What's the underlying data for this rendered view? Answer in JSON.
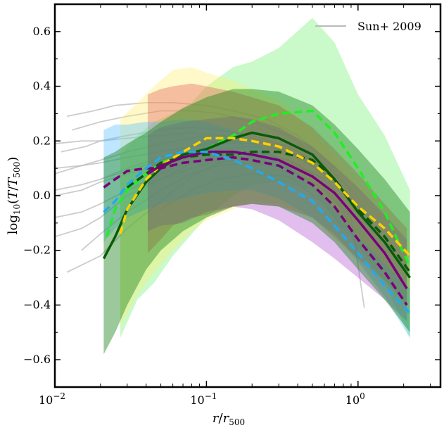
{
  "chart_data": {
    "type": "line",
    "title": "",
    "xlabel": "r/r500",
    "ylabel": "log10(T/T500)",
    "xscale": "log",
    "xlim": [
      0.01,
      3.5
    ],
    "ylim": [
      -0.7,
      0.7
    ],
    "x_ticks": [
      {
        "value": 0.01,
        "base": "10",
        "exp": "−2"
      },
      {
        "value": 0.1,
        "base": "10",
        "exp": "−1"
      },
      {
        "value": 1,
        "base": "10",
        "exp": "0"
      }
    ],
    "y_ticks": [
      {
        "value": -0.6,
        "label": "−0.6"
      },
      {
        "value": -0.4,
        "label": "−0.4"
      },
      {
        "value": -0.2,
        "label": "−0.2"
      },
      {
        "value": 0.0,
        "label": "0.0"
      },
      {
        "value": 0.2,
        "label": "0.2"
      },
      {
        "value": 0.4,
        "label": "0.4"
      },
      {
        "value": 0.6,
        "label": "0.6"
      }
    ],
    "legend": {
      "label": "Sun+ 2009",
      "color": "#bbbbbb",
      "placement": "top-right"
    },
    "bands": [
      {
        "name": "light-green-band",
        "color": "#66ee66",
        "opacity": 0.35,
        "x": [
          0.027,
          0.035,
          0.045,
          0.06,
          0.08,
          0.1,
          0.15,
          0.2,
          0.3,
          0.5,
          0.7,
          1.0,
          1.5,
          2.2
        ],
        "upper": [
          0.15,
          0.22,
          0.27,
          0.3,
          0.34,
          0.4,
          0.47,
          0.49,
          0.54,
          0.65,
          0.56,
          0.37,
          0.22,
          0.02
        ],
        "lower": [
          -0.52,
          -0.38,
          -0.32,
          -0.22,
          -0.14,
          -0.08,
          0.0,
          0.04,
          0.05,
          0.02,
          -0.08,
          -0.18,
          -0.32,
          -0.52
        ]
      },
      {
        "name": "yellow-band",
        "color": "#ffee66",
        "opacity": 0.35,
        "x": [
          0.027,
          0.035,
          0.045,
          0.06,
          0.08,
          0.1,
          0.15,
          0.2,
          0.3,
          0.5,
          0.7,
          1.0,
          1.5,
          2.2
        ],
        "upper": [
          0.28,
          0.34,
          0.4,
          0.46,
          0.47,
          0.45,
          0.42,
          0.39,
          0.35,
          0.24,
          0.14,
          0.03,
          -0.08,
          -0.18
        ],
        "lower": [
          -0.48,
          -0.36,
          -0.28,
          -0.2,
          -0.13,
          -0.09,
          -0.05,
          -0.02,
          -0.03,
          -0.08,
          -0.16,
          -0.24,
          -0.33,
          -0.42
        ]
      },
      {
        "name": "pink-band",
        "color": "#e05050",
        "opacity": 0.35,
        "x": [
          0.041,
          0.05,
          0.06,
          0.08,
          0.1,
          0.15,
          0.2,
          0.3,
          0.5,
          0.7,
          1.0,
          1.5,
          2.1
        ],
        "upper": [
          0.37,
          0.39,
          0.4,
          0.41,
          0.4,
          0.38,
          0.36,
          0.33,
          0.25,
          0.17,
          0.08,
          -0.03,
          -0.12
        ],
        "lower": [
          -0.21,
          -0.16,
          -0.11,
          -0.08,
          -0.07,
          -0.04,
          -0.03,
          -0.04,
          -0.08,
          -0.15,
          -0.23,
          -0.31,
          -0.4
        ]
      },
      {
        "name": "blue-band",
        "color": "#44bbff",
        "opacity": 0.35,
        "x": [
          0.021,
          0.025,
          0.03,
          0.04,
          0.05,
          0.07,
          0.1,
          0.15,
          0.2,
          0.3,
          0.5,
          0.7,
          1.0,
          1.5,
          2.2
        ],
        "upper": [
          0.24,
          0.26,
          0.26,
          0.27,
          0.27,
          0.28,
          0.27,
          0.24,
          0.2,
          0.14,
          0.04,
          -0.05,
          -0.15,
          -0.25,
          -0.34
        ],
        "lower": [
          -0.17,
          -0.12,
          -0.08,
          -0.05,
          -0.03,
          -0.01,
          0.01,
          0.02,
          0.02,
          -0.01,
          -0.08,
          -0.14,
          -0.24,
          -0.37,
          -0.52
        ]
      },
      {
        "name": "purple-band",
        "color": "#aa44cc",
        "opacity": 0.35,
        "x": [
          0.041,
          0.05,
          0.07,
          0.1,
          0.15,
          0.2,
          0.3,
          0.5,
          0.7,
          1.0,
          1.5,
          2.1
        ],
        "upper": [
          0.22,
          0.25,
          0.27,
          0.28,
          0.29,
          0.28,
          0.25,
          0.18,
          0.11,
          0.03,
          -0.07,
          -0.16
        ],
        "lower": [
          -0.13,
          -0.11,
          -0.1,
          -0.06,
          -0.04,
          -0.05,
          -0.09,
          -0.17,
          -0.23,
          -0.3,
          -0.38,
          -0.46
        ]
      },
      {
        "name": "dark-green-band",
        "color": "#228822",
        "opacity": 0.45,
        "x": [
          0.021,
          0.025,
          0.03,
          0.04,
          0.05,
          0.07,
          0.1,
          0.15,
          0.2,
          0.3,
          0.5,
          0.7,
          1.0,
          1.5,
          2.2
        ],
        "upper": [
          0.14,
          0.16,
          0.19,
          0.23,
          0.27,
          0.32,
          0.36,
          0.39,
          0.39,
          0.38,
          0.33,
          0.26,
          0.17,
          0.06,
          -0.06
        ],
        "lower": [
          -0.58,
          -0.5,
          -0.4,
          -0.27,
          -0.2,
          -0.13,
          -0.08,
          -0.04,
          -0.03,
          -0.04,
          -0.1,
          -0.17,
          -0.27,
          -0.38,
          -0.5
        ]
      }
    ],
    "series": [
      {
        "name": "lime-dashed",
        "color": "#22ee22",
        "dashed": true,
        "width": 3.5,
        "x": [
          0.022,
          0.025,
          0.03,
          0.04,
          0.05,
          0.07,
          0.1,
          0.15,
          0.2,
          0.3,
          0.5,
          0.7,
          1.0,
          1.5,
          2.2
        ],
        "y": [
          -0.15,
          -0.05,
          0.02,
          0.08,
          0.12,
          0.15,
          0.17,
          0.22,
          0.27,
          0.3,
          0.31,
          0.23,
          0.1,
          -0.06,
          -0.26
        ]
      },
      {
        "name": "dark-green-solid",
        "color": "#0a5a0a",
        "dashed": false,
        "width": 3.5,
        "x": [
          0.021,
          0.025,
          0.03,
          0.04,
          0.05,
          0.07,
          0.1,
          0.15,
          0.2,
          0.3,
          0.5,
          0.7,
          1.0,
          1.5,
          2.2
        ],
        "y": [
          -0.23,
          -0.15,
          -0.05,
          0.05,
          0.1,
          0.15,
          0.17,
          0.21,
          0.23,
          0.21,
          0.15,
          0.06,
          -0.06,
          -0.17,
          -0.3
        ]
      },
      {
        "name": "dark-green-dashed",
        "color": "#0a5a0a",
        "dashed": true,
        "width": 3.5,
        "x": [
          0.03,
          0.04,
          0.05,
          0.07,
          0.1,
          0.15,
          0.2,
          0.3,
          0.5,
          0.7,
          1.0,
          1.5,
          2.2
        ],
        "y": [
          0.03,
          0.08,
          0.12,
          0.14,
          0.15,
          0.15,
          0.16,
          0.16,
          0.13,
          0.06,
          -0.05,
          -0.15,
          -0.28
        ]
      },
      {
        "name": "yellow-dashed",
        "color": "#ffd000",
        "dashed": true,
        "width": 3.5,
        "x": [
          0.027,
          0.03,
          0.04,
          0.05,
          0.07,
          0.1,
          0.15,
          0.2,
          0.3,
          0.5,
          0.7,
          1.0,
          1.5,
          2.2
        ],
        "y": [
          -0.14,
          -0.05,
          0.06,
          0.11,
          0.16,
          0.21,
          0.21,
          0.2,
          0.18,
          0.12,
          0.05,
          -0.04,
          -0.12,
          -0.22
        ]
      },
      {
        "name": "purple-solid",
        "color": "#7a007a",
        "dashed": false,
        "width": 3.5,
        "x": [
          0.041,
          0.05,
          0.07,
          0.1,
          0.15,
          0.2,
          0.3,
          0.5,
          0.7,
          1.0,
          1.5,
          2.1
        ],
        "y": [
          0.08,
          0.11,
          0.14,
          0.16,
          0.16,
          0.15,
          0.13,
          0.07,
          0.01,
          -0.09,
          -0.21,
          -0.34
        ]
      },
      {
        "name": "purple-dashed",
        "color": "#7a007a",
        "dashed": true,
        "width": 3.5,
        "x": [
          0.021,
          0.025,
          0.03,
          0.04,
          0.05,
          0.07,
          0.1,
          0.15,
          0.2,
          0.3,
          0.5,
          0.7,
          1.0,
          1.5,
          2.1
        ],
        "y": [
          0.03,
          0.06,
          0.09,
          0.1,
          0.1,
          0.12,
          0.13,
          0.14,
          0.13,
          0.11,
          0.04,
          -0.04,
          -0.16,
          -0.28,
          -0.4
        ]
      },
      {
        "name": "cyan-dashed",
        "color": "#22aaee",
        "dashed": true,
        "width": 3.5,
        "x": [
          0.021,
          0.025,
          0.03,
          0.04,
          0.05,
          0.07,
          0.1,
          0.15,
          0.2,
          0.3,
          0.5,
          0.7,
          1.0,
          1.5,
          2.2
        ],
        "y": [
          -0.06,
          -0.02,
          0.04,
          0.1,
          0.14,
          0.16,
          0.16,
          0.13,
          0.1,
          0.05,
          -0.02,
          -0.11,
          -0.21,
          -0.33,
          -0.43
        ]
      }
    ],
    "grey_curves": [
      {
        "x": [
          0.012,
          0.02,
          0.03,
          0.05,
          0.08,
          0.12,
          0.2,
          0.3,
          0.5,
          0.8
        ],
        "y": [
          -0.28,
          -0.22,
          -0.12,
          -0.02,
          0.07,
          0.12,
          0.14,
          0.13,
          0.08,
          -0.05
        ]
      },
      {
        "x": [
          0.01,
          0.015,
          0.02,
          0.03,
          0.05,
          0.08,
          0.12,
          0.2,
          0.3,
          0.5
        ],
        "y": [
          -0.15,
          -0.12,
          -0.08,
          0.0,
          0.06,
          0.12,
          0.15,
          0.16,
          0.14,
          0.08
        ]
      },
      {
        "x": [
          0.01,
          0.015,
          0.02,
          0.03,
          0.05,
          0.08,
          0.12,
          0.2,
          0.35,
          0.6
        ],
        "y": [
          -0.08,
          -0.06,
          -0.03,
          0.02,
          0.08,
          0.13,
          0.17,
          0.18,
          0.16,
          0.08
        ]
      },
      {
        "x": [
          0.01,
          0.015,
          0.02,
          0.03,
          0.05,
          0.08,
          0.12,
          0.2,
          0.35,
          0.55
        ],
        "y": [
          0.02,
          0.04,
          0.06,
          0.09,
          0.13,
          0.16,
          0.19,
          0.2,
          0.18,
          0.12
        ]
      },
      {
        "x": [
          0.01,
          0.015,
          0.02,
          0.03,
          0.05,
          0.08,
          0.12,
          0.2,
          0.35,
          0.6
        ],
        "y": [
          0.08,
          0.11,
          0.13,
          0.16,
          0.19,
          0.21,
          0.22,
          0.21,
          0.18,
          0.1
        ]
      },
      {
        "x": [
          0.011,
          0.016,
          0.02,
          0.03,
          0.05,
          0.08,
          0.12,
          0.2,
          0.35,
          0.6
        ],
        "y": [
          0.16,
          0.18,
          0.2,
          0.22,
          0.24,
          0.25,
          0.24,
          0.22,
          0.18,
          0.1
        ]
      },
      {
        "x": [
          0.013,
          0.02,
          0.03,
          0.05,
          0.08,
          0.12,
          0.2,
          0.35,
          0.6,
          0.9
        ],
        "y": [
          0.24,
          0.27,
          0.29,
          0.31,
          0.31,
          0.3,
          0.27,
          0.22,
          0.12,
          0.02
        ]
      },
      {
        "x": [
          0.012,
          0.018,
          0.025,
          0.04,
          0.06,
          0.1,
          0.15,
          0.25,
          0.4,
          0.7
        ],
        "y": [
          0.29,
          0.31,
          0.33,
          0.34,
          0.34,
          0.33,
          0.31,
          0.28,
          0.22,
          0.1
        ]
      },
      {
        "x": [
          0.01,
          0.015,
          0.02,
          0.03,
          0.05,
          0.08,
          0.12,
          0.2,
          0.35,
          0.6
        ],
        "y": [
          0.1,
          0.11,
          0.12,
          0.14,
          0.16,
          0.18,
          0.19,
          0.19,
          0.16,
          0.08
        ]
      },
      {
        "x": [
          0.01,
          0.015,
          0.02,
          0.03,
          0.05,
          0.08,
          0.12,
          0.2,
          0.35,
          0.6
        ],
        "y": [
          0.0,
          0.02,
          0.05,
          0.08,
          0.11,
          0.14,
          0.16,
          0.16,
          0.13,
          0.06
        ]
      },
      {
        "x": [
          0.015,
          0.02,
          0.03,
          0.05,
          0.08,
          0.12,
          0.2,
          0.35,
          0.6,
          0.9
        ],
        "y": [
          -0.2,
          -0.14,
          -0.06,
          0.02,
          0.08,
          0.11,
          0.12,
          0.1,
          0.02,
          -0.08
        ]
      },
      {
        "x": [
          0.01,
          0.015,
          0.02,
          0.03,
          0.05,
          0.08,
          0.12,
          0.2,
          0.35,
          0.6
        ],
        "y": [
          0.19,
          0.2,
          0.2,
          0.21,
          0.22,
          0.23,
          0.22,
          0.2,
          0.16,
          0.08
        ]
      },
      {
        "x": [
          0.02,
          0.03,
          0.05,
          0.08,
          0.12,
          0.2,
          0.35,
          0.6,
          0.9,
          1.1
        ],
        "y": [
          0.06,
          0.1,
          0.14,
          0.18,
          0.2,
          0.2,
          0.17,
          0.08,
          -0.08,
          -0.41
        ]
      },
      {
        "x": [
          0.03,
          0.05,
          0.08,
          0.12,
          0.2,
          0.35,
          0.6,
          0.8,
          1.0
        ],
        "y": [
          0.02,
          0.06,
          0.1,
          0.13,
          0.14,
          0.13,
          0.06,
          -0.05,
          -0.2
        ]
      },
      {
        "x": [
          0.05,
          0.08,
          0.12,
          0.2,
          0.35,
          0.6,
          0.8
        ],
        "y": [
          -0.05,
          0.02,
          0.06,
          0.08,
          0.07,
          -0.03,
          -0.12
        ]
      }
    ]
  }
}
